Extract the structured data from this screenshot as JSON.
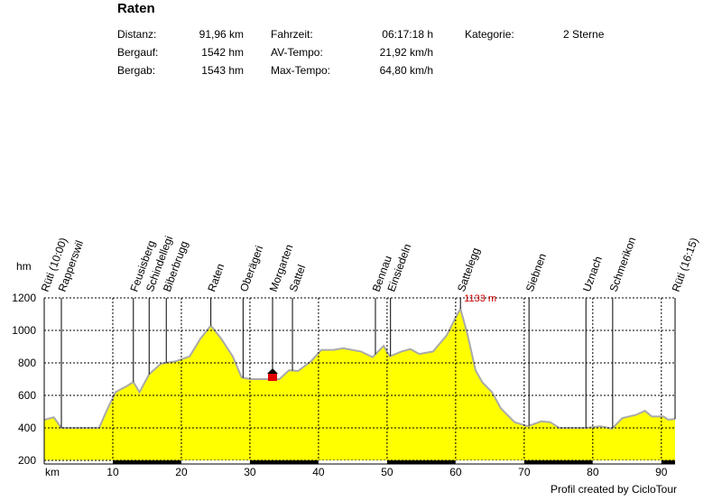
{
  "header": {
    "title": "Raten",
    "stats": [
      [
        "Distanz:",
        "91,96 km",
        "Fahrzeit:",
        "06:17:18 h",
        "Kategorie:",
        "2 Sterne"
      ],
      [
        "Bergauf:",
        "1542 hm",
        "AV-Tempo:",
        "21,92 km/h"
      ],
      [
        "Bergab:",
        "1543 hm",
        "Max-Tempo:",
        "64,80 km/h"
      ]
    ]
  },
  "chart_data": {
    "type": "area",
    "x_label": "km",
    "y_label": "hm",
    "x": [
      0,
      1.4,
      2.5,
      8.0,
      9.1,
      10.4,
      12.0,
      13.0,
      13.9,
      15.3,
      17.0,
      19.2,
      21.2,
      22.8,
      24.3,
      25.8,
      27.5,
      28.8,
      30.1,
      34.3,
      35.7,
      37.0,
      38.9,
      40.4,
      42.2,
      43.6,
      46.2,
      47.9,
      49.5,
      50.4,
      52.1,
      53.4,
      54.7,
      56.7,
      58.7,
      60.0,
      60.7,
      61.7,
      62.9,
      63.9,
      65.3,
      66.6,
      68.6,
      70.5,
      72.5,
      73.8,
      75.1,
      79.1,
      81.1,
      82.8,
      84.3,
      86.3,
      87.6,
      88.6,
      90.3,
      91.0,
      92
    ],
    "values": [
      450,
      465,
      400,
      400,
      505,
      620,
      656,
      683,
      620,
      730,
      795,
      810,
      840,
      950,
      1030,
      950,
      840,
      710,
      700,
      700,
      755,
      750,
      810,
      880,
      880,
      890,
      870,
      835,
      905,
      840,
      870,
      885,
      855,
      870,
      970,
      1080,
      1133,
      980,
      755,
      680,
      620,
      520,
      435,
      410,
      440,
      435,
      400,
      400,
      410,
      395,
      460,
      480,
      505,
      470,
      470,
      450,
      455
    ],
    "color": "#ffff00",
    "line_color": "#aaaaaa",
    "xlim": [
      0,
      92
    ],
    "xticks": [
      10,
      20,
      30,
      40,
      50,
      60,
      70,
      80,
      90
    ],
    "ylim": [
      200,
      1200
    ],
    "yticks": [
      200,
      400,
      600,
      800,
      1000,
      1200
    ],
    "grid": true,
    "waypoints": {
      "names": [
        "Rüti (10:00)",
        "Rapperswil",
        "Feusisberg",
        "Schindellegi",
        "Biberbrugg",
        "Raten",
        "Oberägeri",
        "Morgarten",
        "Sattel",
        "Bennau",
        "Einsiedeln",
        "Sattelegg",
        "Siebnen",
        "Uznach",
        "Schmerikon",
        "Rüti (16:15)"
      ],
      "km": [
        0,
        2.5,
        13.0,
        15.3,
        17.8,
        24.3,
        29.0,
        33.3,
        36.2,
        48.3,
        50.5,
        60.7,
        70.7,
        79.0,
        82.9,
        92
      ]
    },
    "annotation": {
      "text": "1133 m",
      "x": 60.7,
      "y": 1133
    },
    "footer": "Profil created by CicloTour"
  }
}
